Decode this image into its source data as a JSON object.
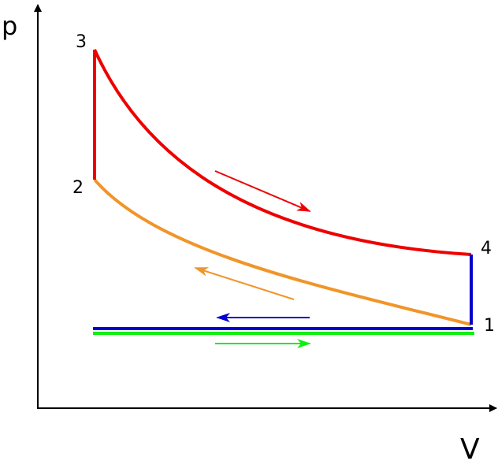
{
  "axes": {
    "y_label": "p",
    "x_label": "V"
  },
  "points": [
    {
      "label": "1"
    },
    {
      "label": "2"
    },
    {
      "label": "3"
    },
    {
      "label": "4"
    }
  ]
}
